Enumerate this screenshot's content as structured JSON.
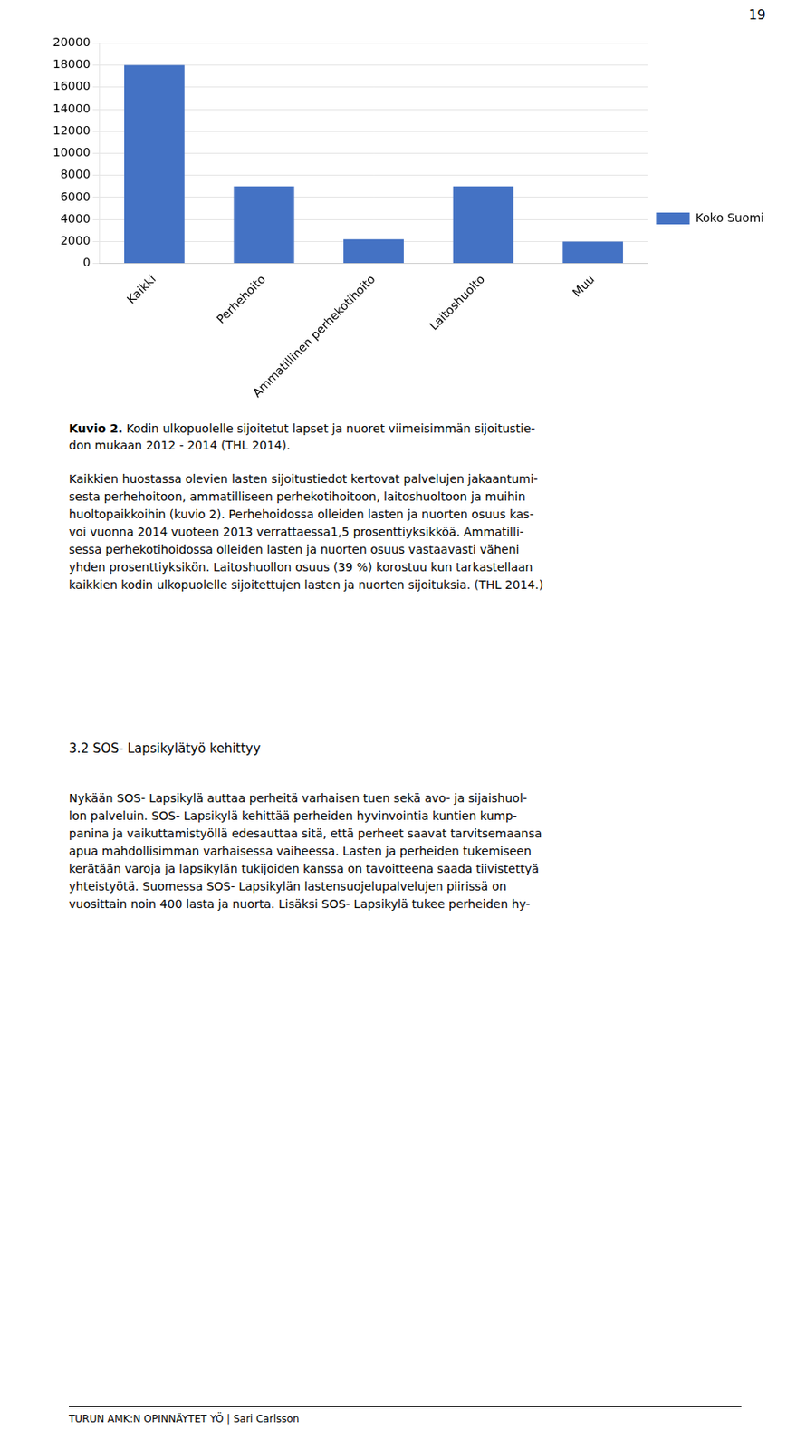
{
  "chart_data": {
    "type": "bar",
    "categories": [
      "Kaikki",
      "Perhehoito",
      "Ammatillinen perhekotihoito",
      "Laitoshuolto",
      "Muu"
    ],
    "series": [
      {
        "name": "Koko Suomi",
        "color": "#4472C4",
        "values": [
          18000,
          7000,
          2200,
          7000,
          2000
        ]
      }
    ],
    "ylim": [
      0,
      20000
    ],
    "yticks": [
      0,
      2000,
      4000,
      6000,
      8000,
      10000,
      12000,
      14000,
      16000,
      18000,
      20000
    ],
    "grid": true,
    "legend": "right",
    "annotations": [
      "19",
      "Kuvio 2.",
      " Kodin ulkopuolelle sijoitetut lapset ja nuoret viimeisimmän sijoitustie-\ndon mukaan 2012 - 2014 (THL 2014).",
      "Kaikkien huostassa olevien lasten sijoitustiedot kertovat palvelujen jakaantumi-\nsesta perhehoitoon, ammatilliseen perhekotihoitoon, laitoshuoltoon ja muihin\nhuoltopaikkoihin (kuvio 2). Perhehoidossa olleiden lasten ja nuorten osuus kas-\nvoi vuonna 2014 vuoteen 2013 verrattaessa1,5 prosenttiyksikköä. Ammatilli-\nsessa perhekotihoidossa olleiden lasten ja nuorten osuus vastaavasti väheni\nyhden prosenttiyksikön. Laitoshuollon osuus (39 %) korostuu kun tarkastellaan\nkaikkien kodin ulkopuolelle sijoitettujen lasten ja nuorten sijoituksia. (THL 2014.)",
      "3.2 SOS- Lapsikylätyö kehittyy",
      "Nykään SOS- Lapsikylä auttaa perheitä varhaisen tuen sekä avo- ja sijaishuol-\nlon palveluin. SOS- Lapsikylä kehittää perheiden hyvinvointia kuntien kump-\npanina ja vaikuttamistyöllä edesauttaa sitä, että perheet saavat tarvitsemaansa\napua mahdollisimman varhaisessa vaiheessa. Lasten ja perheiden tukemiseen\nkerätään varoja ja lapsikylän tukijoiden kanssa on tavoitteena saada tiivistettyä\nyhteistyötä. Suomessa SOS- Lapsikylän lastensuojelupalvelujen piirissä on\nvuosittain noin 400 lasta ja nuorta. Lisäksi SOS- Lapsikylä tukee perheiden hy-",
      "TURUN AMK:N OPINNÄYTET YÖ | Sari Carlsson"
    ]
  }
}
